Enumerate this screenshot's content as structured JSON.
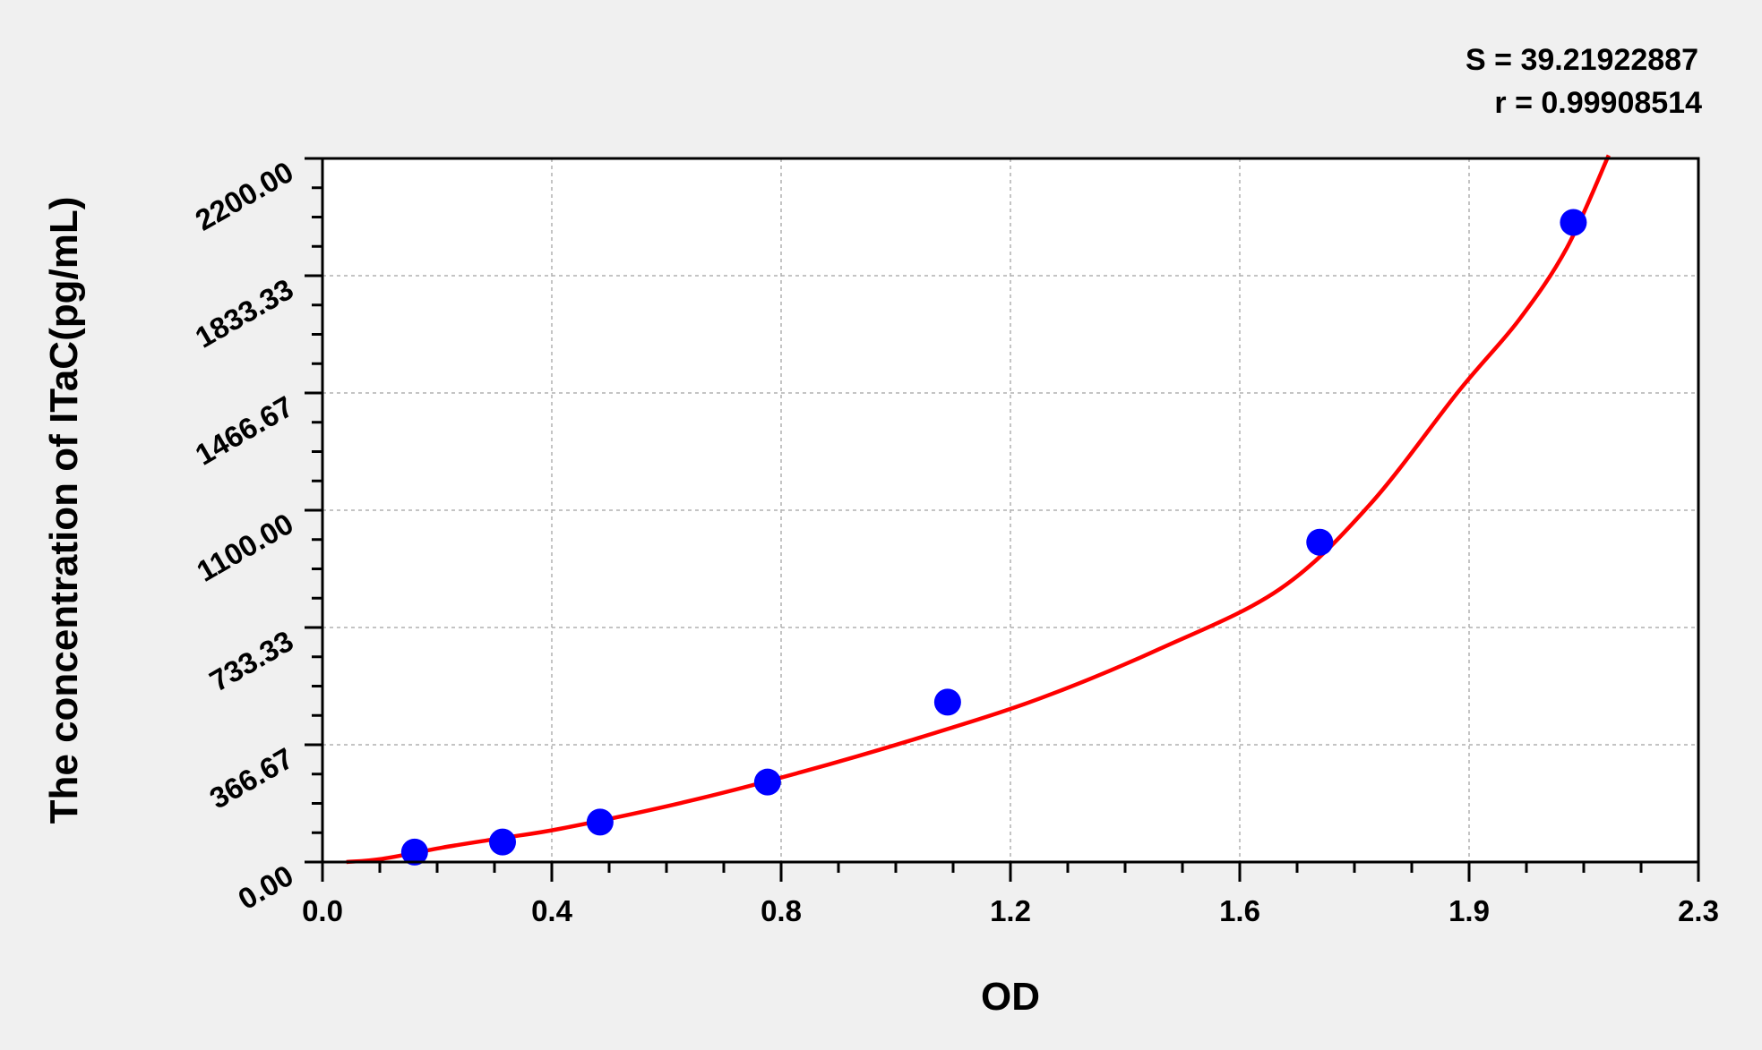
{
  "chart_data": {
    "type": "scatter",
    "xlabel": "OD",
    "ylabel": "The concentration of ITaC(pg/mL)",
    "xlim": [
      0,
      2.3
    ],
    "ylim": [
      0,
      2200
    ],
    "x_tick_labels": [
      "0.0",
      "0.4",
      "0.8",
      "1.2",
      "1.6",
      "1.9",
      "2.3"
    ],
    "y_tick_labels": [
      "0.00",
      "366.67",
      "733.33",
      "1100.00",
      "1466.67",
      "1833.33",
      "2200.00"
    ],
    "grid": true,
    "annotations": {
      "s": "S = 39.21922887",
      "r": "r = 0.99908514"
    },
    "points": [
      {
        "x": 0.154,
        "y": 31.25
      },
      {
        "x": 0.301,
        "y": 62.5
      },
      {
        "x": 0.464,
        "y": 125
      },
      {
        "x": 0.744,
        "y": 250
      },
      {
        "x": 1.045,
        "y": 500
      },
      {
        "x": 1.667,
        "y": 1000
      },
      {
        "x": 2.091,
        "y": 2000
      }
    ],
    "fit_curve": [
      [
        0.04,
        0
      ],
      [
        0.1,
        10
      ],
      [
        0.2,
        45
      ],
      [
        0.3,
        75
      ],
      [
        0.4,
        105
      ],
      [
        0.6,
        185
      ],
      [
        0.8,
        281
      ],
      [
        1.0,
        390
      ],
      [
        1.2,
        512
      ],
      [
        1.4,
        667
      ],
      [
        1.6,
        853
      ],
      [
        1.75,
        1116
      ],
      [
        1.9,
        1474
      ],
      [
        2.0,
        1695
      ],
      [
        2.08,
        1920
      ],
      [
        2.15,
        2210
      ]
    ],
    "colors": {
      "points": "#0000ff",
      "curve": "#ff0000",
      "background": "#f0f0f0",
      "plot": "#ffffff",
      "grid": "#b0b0b0"
    }
  }
}
